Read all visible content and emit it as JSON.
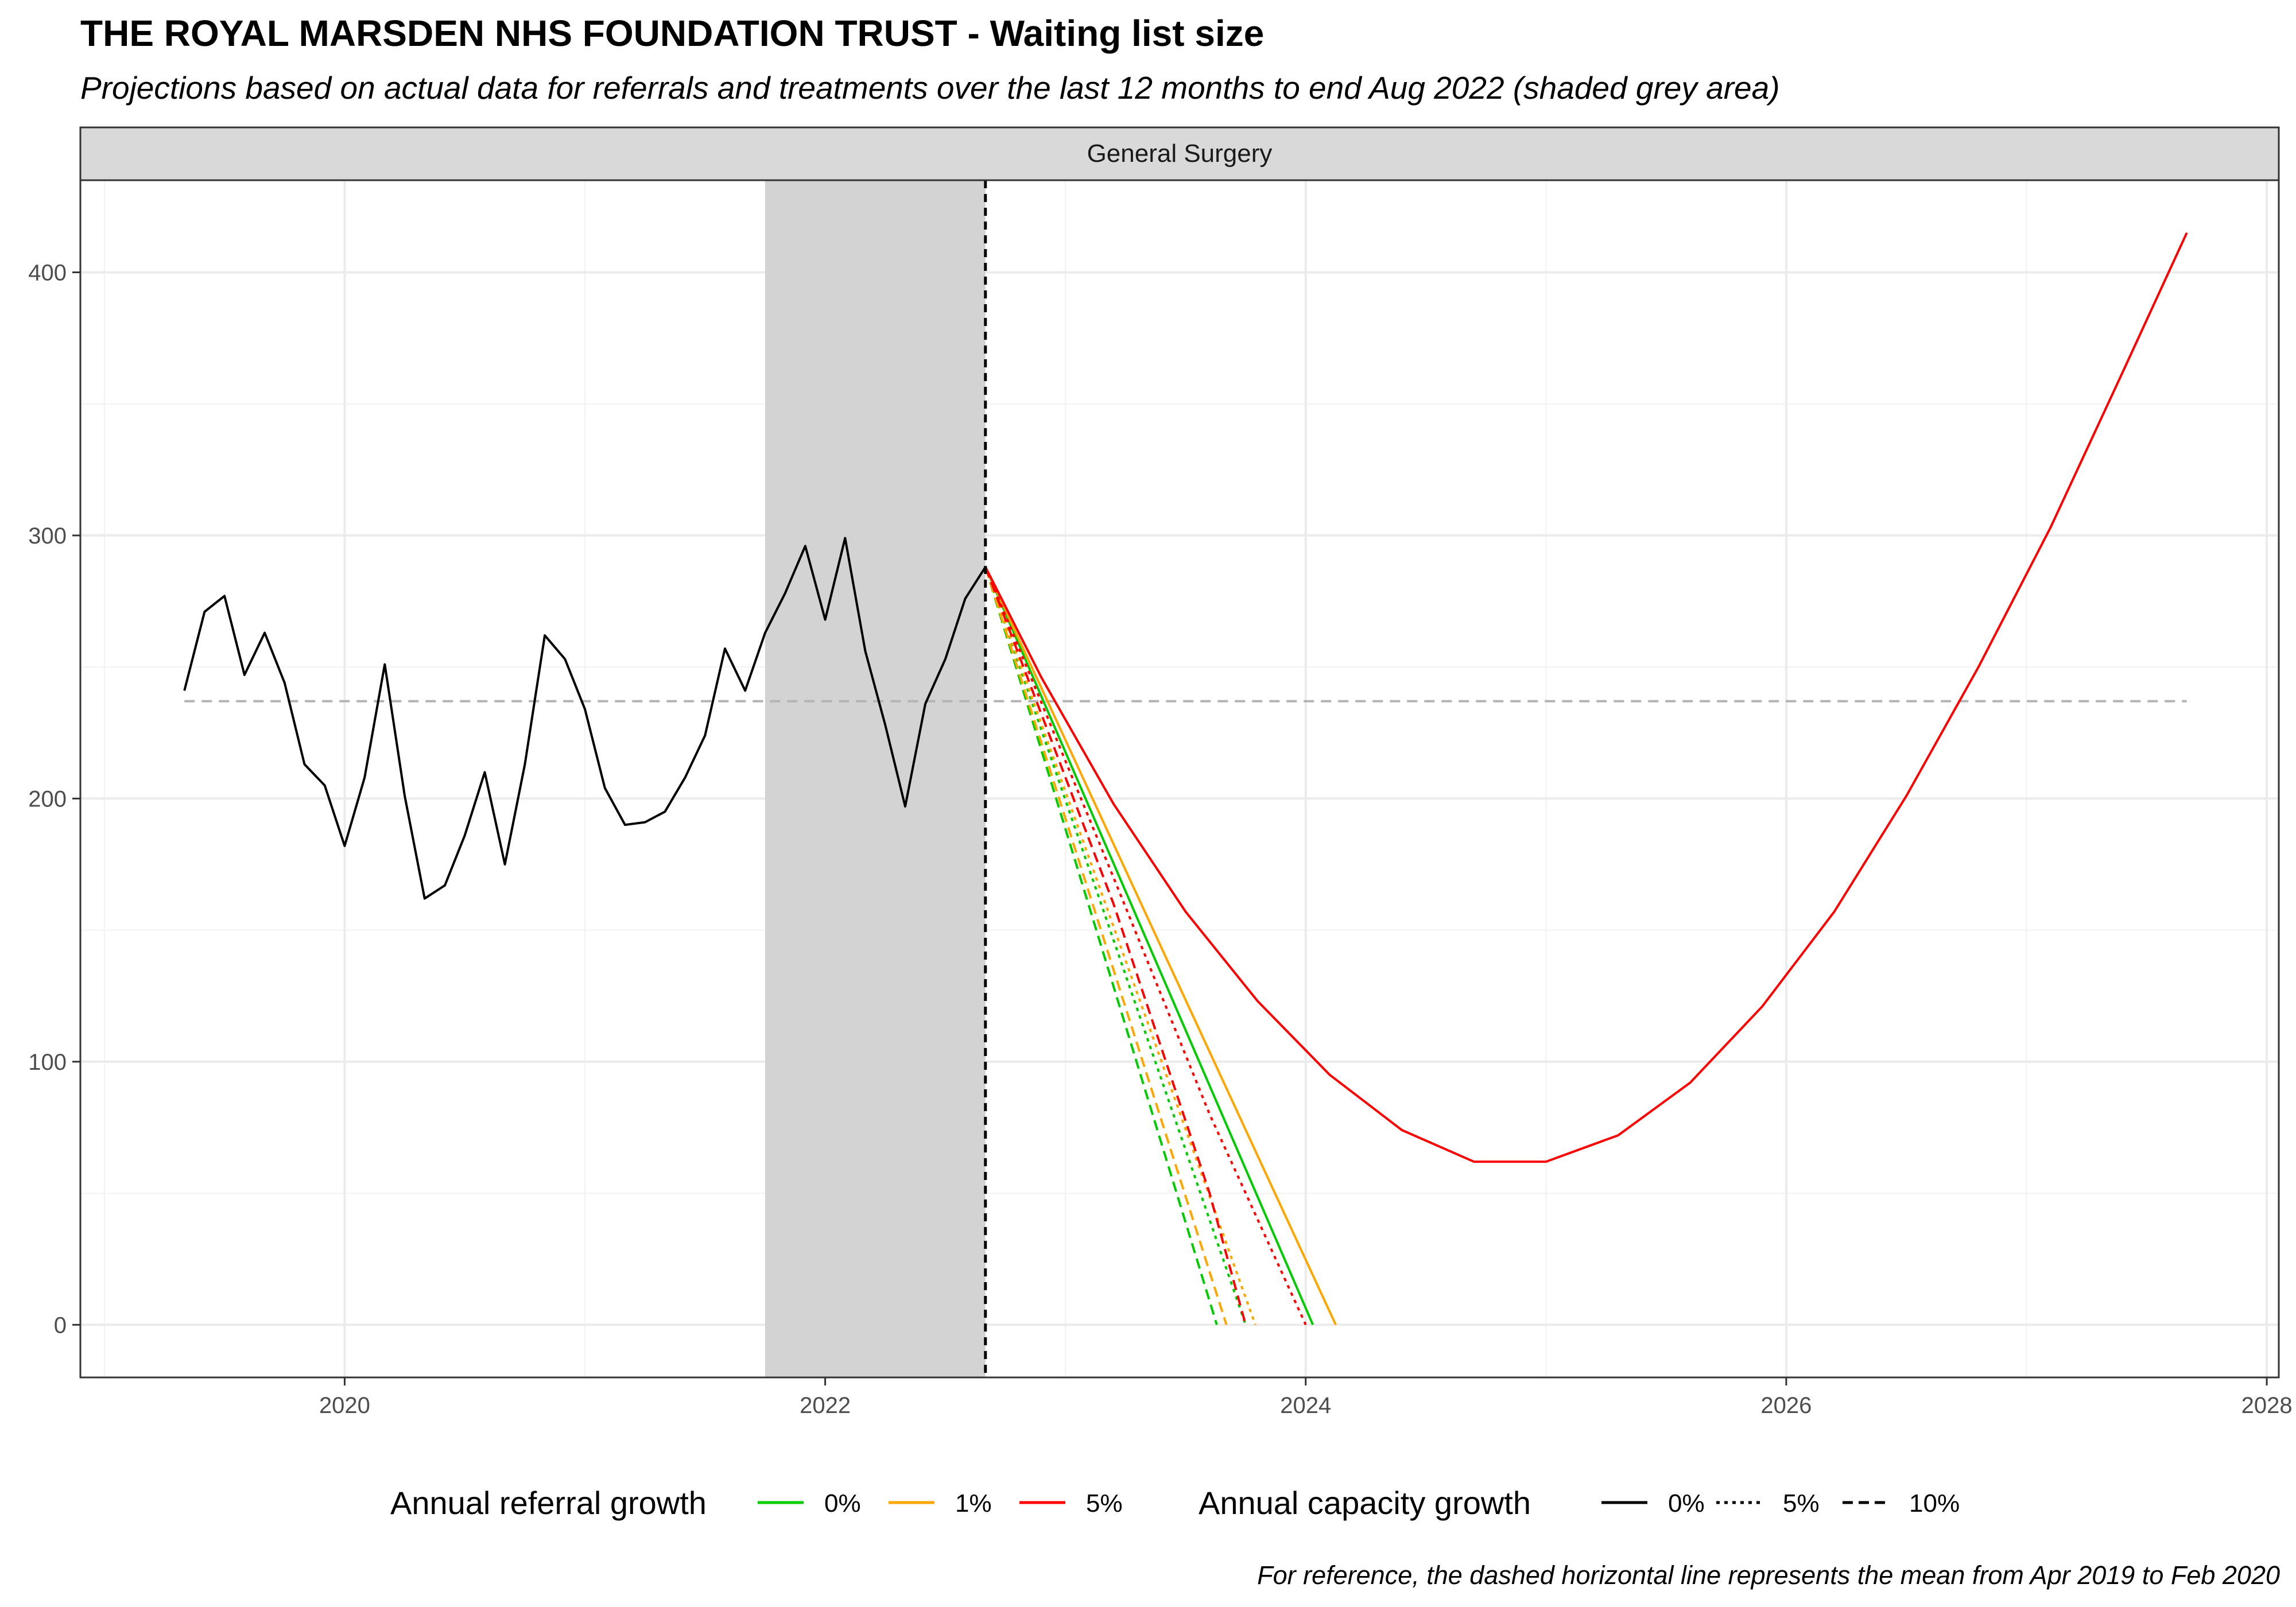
{
  "chart_data": {
    "type": "line",
    "title": "THE ROYAL MARSDEN NHS FOUNDATION TRUST - Waiting list size",
    "subtitle": "Projections based on actual data for referrals and treatments over the last 12 months to end Aug 2022 (shaded grey area)",
    "facet": "General Surgery",
    "caption": "For reference, the dashed horizontal line represents the mean from Apr 2019 to Feb 2020",
    "xlabel": "",
    "ylabel": "",
    "xlim": [
      2018.9,
      2028.05
    ],
    "ylim": [
      -20,
      435
    ],
    "x_ticks": [
      2020,
      2022,
      2024,
      2026,
      2028
    ],
    "y_ticks": [
      0,
      100,
      200,
      300,
      400
    ],
    "grid": true,
    "legend_position": "bottom",
    "shaded_period": {
      "from": 2021.75,
      "to": 2022.667,
      "color": "#d3d3d3"
    },
    "projection_start": 2022.667,
    "reference_mean": 237,
    "actual": {
      "x": [
        2019.333,
        2019.417,
        2019.5,
        2019.583,
        2019.667,
        2019.75,
        2019.833,
        2019.917,
        2020.0,
        2020.083,
        2020.167,
        2020.25,
        2020.333,
        2020.417,
        2020.5,
        2020.583,
        2020.667,
        2020.75,
        2020.833,
        2020.917,
        2021.0,
        2021.083,
        2021.167,
        2021.25,
        2021.333,
        2021.417,
        2021.5,
        2021.583,
        2021.667,
        2021.75,
        2021.833,
        2021.917,
        2022.0,
        2022.083,
        2022.167,
        2022.25,
        2022.333,
        2022.417,
        2022.5,
        2022.583,
        2022.667
      ],
      "y": [
        241,
        271,
        277,
        247,
        263,
        244,
        213,
        205,
        182,
        208,
        251,
        201,
        162,
        167,
        186,
        210,
        175,
        213,
        262,
        253,
        234,
        204,
        190,
        191,
        195,
        208,
        224,
        257,
        241,
        263,
        278,
        296,
        268,
        299,
        256,
        228,
        197,
        236,
        253,
        276,
        288
      ]
    },
    "referral_legend": {
      "title": "Annual referral growth",
      "items": [
        {
          "label": "0%",
          "color": "#00cc00"
        },
        {
          "label": "1%",
          "color": "#ffa500"
        },
        {
          "label": "5%",
          "color": "#ff0000"
        }
      ]
    },
    "capacity_legend": {
      "title": "Annual capacity growth",
      "items": [
        {
          "label": "0%",
          "dash": "solid"
        },
        {
          "label": "5%",
          "dash": "dotted"
        },
        {
          "label": "10%",
          "dash": "dashed"
        }
      ]
    },
    "projections": [
      {
        "referral": "0%",
        "capacity": "0%",
        "x": [
          2022.667,
          2024.03
        ],
        "y": [
          288,
          0
        ]
      },
      {
        "referral": "1%",
        "capacity": "0%",
        "x": [
          2022.667,
          2024.125
        ],
        "y": [
          288,
          0
        ]
      },
      {
        "referral": "5%",
        "capacity": "0%",
        "x": [
          2022.667,
          2022.9,
          2023.2,
          2023.5,
          2023.8,
          2024.1,
          2024.4,
          2024.7,
          2025.0,
          2025.3,
          2025.6,
          2025.9,
          2026.2,
          2026.5,
          2026.8,
          2027.1,
          2027.4,
          2027.667
        ],
        "y": [
          288,
          246,
          198,
          157,
          123,
          95,
          74,
          62,
          62,
          72,
          92,
          121,
          157,
          201,
          250,
          303,
          362,
          415
        ]
      },
      {
        "referral": "0%",
        "capacity": "5%",
        "x": [
          2022.667,
          2023.75
        ],
        "y": [
          288,
          0
        ]
      },
      {
        "referral": "1%",
        "capacity": "5%",
        "x": [
          2022.667,
          2023.79
        ],
        "y": [
          288,
          0
        ]
      },
      {
        "referral": "5%",
        "capacity": "5%",
        "x": [
          2022.667,
          2023.2,
          2023.6,
          2024.0
        ],
        "y": [
          288,
          170,
          80,
          0
        ]
      },
      {
        "referral": "0%",
        "capacity": "10%",
        "x": [
          2022.667,
          2023.63
        ],
        "y": [
          288,
          0
        ]
      },
      {
        "referral": "1%",
        "capacity": "10%",
        "x": [
          2022.667,
          2023.67
        ],
        "y": [
          288,
          0
        ]
      },
      {
        "referral": "5%",
        "capacity": "10%",
        "x": [
          2022.667,
          2023.2,
          2023.6,
          2023.75
        ],
        "y": [
          288,
          160,
          50,
          0
        ]
      }
    ]
  }
}
